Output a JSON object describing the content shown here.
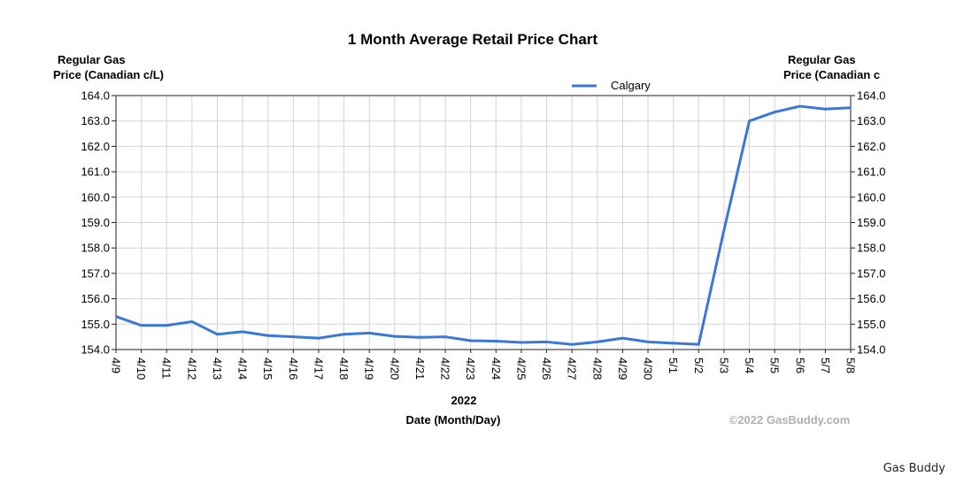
{
  "chart_data": {
    "type": "line",
    "title": "1 Month Average Retail Price Chart",
    "ylabel_left": [
      "Regular Gas",
      "Price (Canadian c/L)"
    ],
    "ylabel_right": [
      "Regular Gas",
      "Price (Canadian c"
    ],
    "xlabel": "Date (Month/Day)",
    "xlabel_year": "2022",
    "ylim": [
      154.0,
      164.0
    ],
    "y_ticks": [
      "154.0",
      "155.0",
      "156.0",
      "157.0",
      "158.0",
      "159.0",
      "160.0",
      "161.0",
      "162.0",
      "163.0",
      "164.0"
    ],
    "categories": [
      "4/9",
      "4/10",
      "4/11",
      "4/12",
      "4/13",
      "4/14",
      "4/15",
      "4/16",
      "4/17",
      "4/18",
      "4/19",
      "4/20",
      "4/21",
      "4/22",
      "4/23",
      "4/24",
      "4/25",
      "4/26",
      "4/27",
      "4/28",
      "4/29",
      "4/30",
      "5/1",
      "5/2",
      "5/3",
      "5/4",
      "5/5",
      "5/6",
      "5/7",
      "5/8"
    ],
    "series": [
      {
        "name": "Calgary",
        "color": "#3a78d8",
        "values": [
          155.3,
          154.95,
          154.95,
          155.1,
          154.6,
          154.7,
          154.55,
          154.5,
          154.45,
          154.6,
          154.65,
          154.52,
          154.48,
          154.5,
          154.35,
          154.33,
          154.28,
          154.3,
          154.2,
          154.3,
          154.45,
          154.3,
          154.25,
          154.2,
          158.7,
          163.0,
          163.35,
          163.58,
          163.47,
          163.52
        ]
      }
    ],
    "grid": true,
    "legend_position": "top-right",
    "watermark": "©2022 GasBuddy.com"
  },
  "credit": "Gas Buddy"
}
